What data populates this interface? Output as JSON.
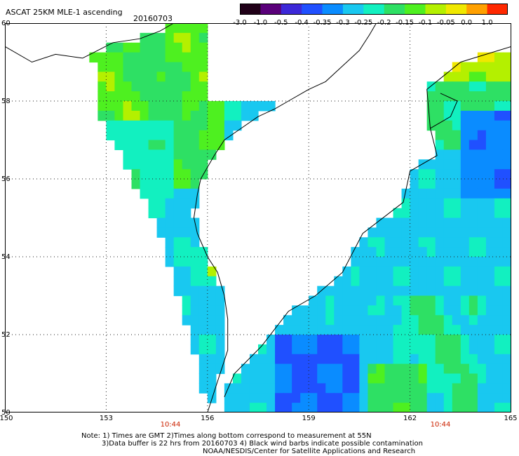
{
  "title": "ASCAT 25KM MLE-1 ascending",
  "date": "20160703",
  "colorbar": {
    "labels": [
      "-3.0",
      "-1.0",
      "-0.5",
      "-0.4",
      "-0.35",
      "-0.3",
      "-0.25",
      "-0.2",
      "-0.15",
      "-0.1",
      "-0.05",
      "0.0",
      "1.0"
    ],
    "colors": [
      "#200018",
      "#5a007a",
      "#3c28d8",
      "#2050ff",
      "#0a8cff",
      "#19c8f0",
      "#12f0c0",
      "#2ee064",
      "#4ef020",
      "#b4f000",
      "#f0e800",
      "#ffa000",
      "#ff2800"
    ]
  },
  "axes": {
    "lon_labels": [
      "150",
      "153",
      "156",
      "159",
      "162",
      "165"
    ],
    "lat_labels": [
      "60",
      "58",
      "56",
      "54",
      "52",
      "50"
    ],
    "lon_range": [
      150,
      165
    ],
    "lat_range": [
      50,
      60
    ]
  },
  "time_labels": [
    "10:44",
    "10:44"
  ],
  "notes": [
    "Note: 1) Times are GMT 2)Times along bottom correspond to measurement at 55N",
    "3)Data buffer is 22 hrs from 20160703 4) Black wind barbs indicate possible contamination",
    "NOAA/NESDIS/Center for Satellite Applications and Research"
  ],
  "colors": {
    "grid": "#222222",
    "coast": "#000000",
    "time_text": "#cc2200"
  }
}
